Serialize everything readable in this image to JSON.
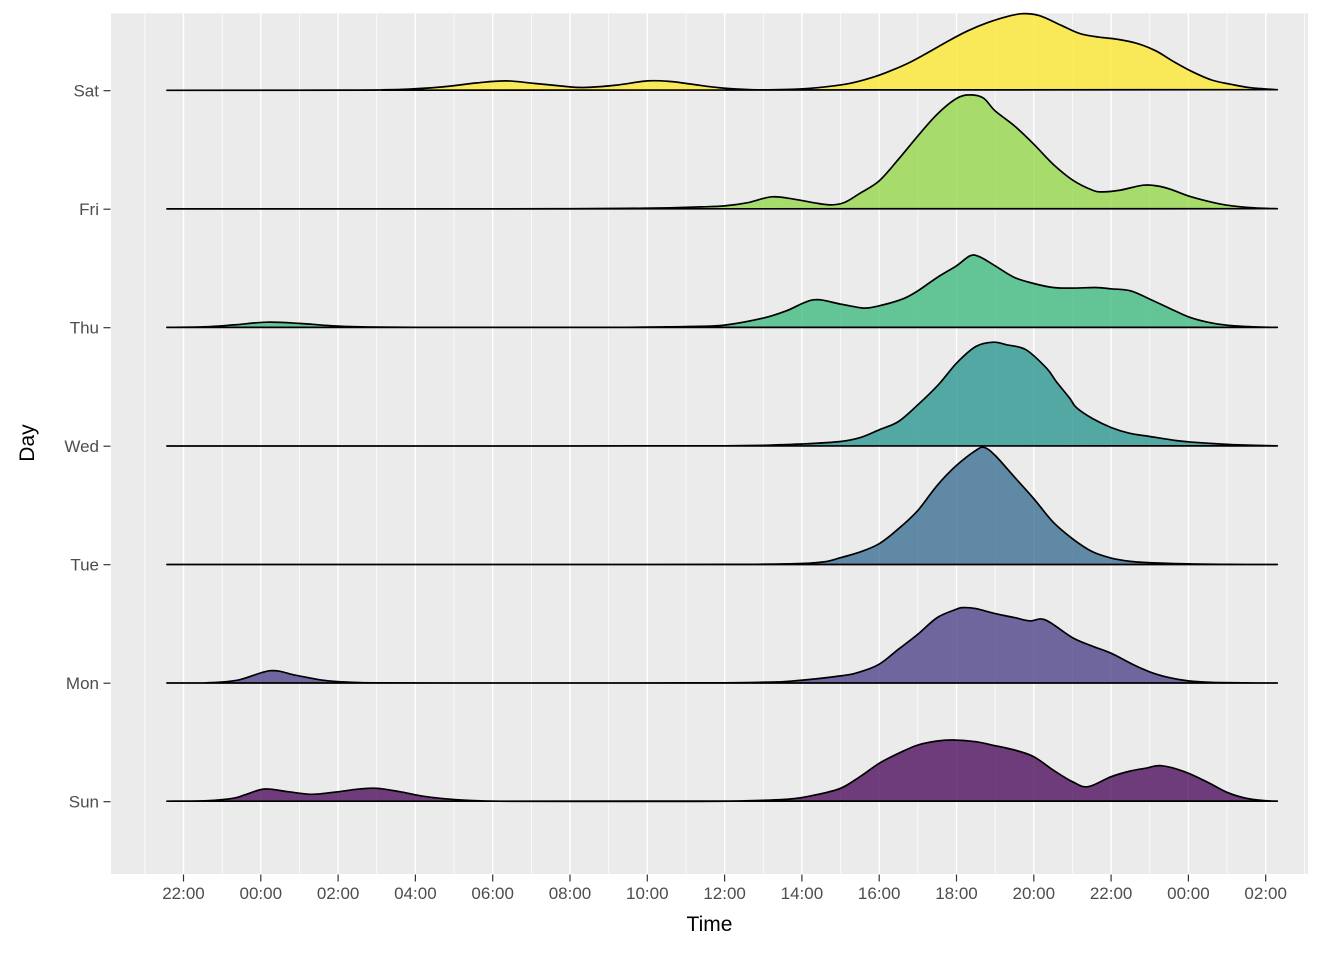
{
  "figure": {
    "bg": "#ffffff"
  },
  "axes": {
    "x_title": "Time",
    "y_title": "Day",
    "tick_label_color": "#4d4d4d",
    "tick_mark_color": "#333333",
    "title_color": "#000000"
  },
  "panel": {
    "bg": "#EBEBEB",
    "grid_color": "#FFFFFF"
  },
  "chart_data": {
    "type": "area",
    "variant": "ridgeline-density",
    "xlabel": "Time",
    "ylabel": "Day",
    "x_unit": "hours after first tick (22:00); 2 = 00:00, 14 = 12:00, 26 = 00:00 next day",
    "height_unit": "px of panel; row spacing = 118.5 px",
    "x_major_ticks_u": [
      0,
      2,
      4,
      6,
      8,
      10,
      12,
      14,
      16,
      18,
      20,
      22,
      24,
      26,
      28
    ],
    "x_major_tick_labels": [
      "22:00",
      "00:00",
      "02:00",
      "04:00",
      "06:00",
      "08:00",
      "10:00",
      "12:00",
      "14:00",
      "16:00",
      "18:00",
      "20:00",
      "22:00",
      "00:00",
      "02:00"
    ],
    "x_minor_ticks_u": [
      -1,
      1,
      3,
      5,
      7,
      9,
      11,
      13,
      15,
      17,
      19,
      21,
      23,
      25,
      27,
      29
    ],
    "y_categories_top_to_bottom": [
      "Sat",
      "Fri",
      "Thu",
      "Wed",
      "Tue",
      "Mon",
      "Sun"
    ],
    "fill_opacity": 0.75,
    "series": [
      {
        "name": "Sat",
        "fill": "#FDE725",
        "points": [
          [
            -0.43,
            0.4
          ],
          [
            2,
            0.4
          ],
          [
            4,
            0.6
          ],
          [
            5.6,
            1.2
          ],
          [
            6.7,
            3.8
          ],
          [
            7.6,
            7.8
          ],
          [
            8.35,
            9.8
          ],
          [
            9.1,
            7.2
          ],
          [
            9.9,
            4.2
          ],
          [
            10.35,
            3.2
          ],
          [
            11.2,
            5.6
          ],
          [
            12.0,
            9.8
          ],
          [
            12.6,
            9.2
          ],
          [
            13.2,
            6.2
          ],
          [
            13.9,
            2.8
          ],
          [
            14.7,
            1
          ],
          [
            15.6,
            1.2
          ],
          [
            16.4,
            3
          ],
          [
            17.2,
            7
          ],
          [
            17.8,
            13
          ],
          [
            18.3,
            20
          ],
          [
            18.8,
            28.5
          ],
          [
            19.3,
            39
          ],
          [
            19.8,
            50
          ],
          [
            20.3,
            60
          ],
          [
            20.8,
            68
          ],
          [
            21.3,
            74
          ],
          [
            21.7,
            77
          ],
          [
            22.15,
            75
          ],
          [
            22.7,
            65.5
          ],
          [
            23.2,
            57
          ],
          [
            23.7,
            53.5
          ],
          [
            24.15,
            51.5
          ],
          [
            24.65,
            47.5
          ],
          [
            25.15,
            40
          ],
          [
            25.6,
            29.5
          ],
          [
            26.1,
            19
          ],
          [
            26.6,
            10.7
          ],
          [
            27.1,
            6.4
          ],
          [
            27.6,
            3
          ],
          [
            28.3,
            1
          ]
        ]
      },
      {
        "name": "Fri",
        "fill": "#90D743",
        "points": [
          [
            -0.43,
            0.3
          ],
          [
            4,
            0.3
          ],
          [
            8,
            0.35
          ],
          [
            10,
            0.5
          ],
          [
            11.5,
            0.8
          ],
          [
            12.6,
            1.4
          ],
          [
            13.4,
            2.3
          ],
          [
            14,
            3.3
          ],
          [
            14.6,
            6.5
          ],
          [
            15.22,
            12.4
          ],
          [
            15.8,
            10
          ],
          [
            16.3,
            6.5
          ],
          [
            16.73,
            4.3
          ],
          [
            17.1,
            6.7
          ],
          [
            17.5,
            15.9
          ],
          [
            18,
            28.3
          ],
          [
            18.5,
            50
          ],
          [
            19,
            73.3
          ],
          [
            19.5,
            95
          ],
          [
            20,
            110.7
          ],
          [
            20.35,
            114.3
          ],
          [
            20.7,
            111
          ],
          [
            21,
            98.3
          ],
          [
            21.5,
            83.3
          ],
          [
            22,
            65
          ],
          [
            22.5,
            45
          ],
          [
            23,
            29.3
          ],
          [
            23.5,
            19.3
          ],
          [
            23.76,
            17.3
          ],
          [
            24.2,
            18.8
          ],
          [
            24.83,
            24
          ],
          [
            25.2,
            23.2
          ],
          [
            25.53,
            20
          ],
          [
            26,
            13.3
          ],
          [
            26.5,
            8
          ],
          [
            27,
            4
          ],
          [
            27.7,
            1.3
          ],
          [
            28.3,
            0.5
          ]
        ]
      },
      {
        "name": "Thu",
        "fill": "#35B779",
        "points": [
          [
            -0.43,
            0.3
          ],
          [
            0.5,
            0.8
          ],
          [
            1.3,
            2.8
          ],
          [
            2.15,
            5.5
          ],
          [
            3,
            4.3
          ],
          [
            3.8,
            2
          ],
          [
            4.6,
            0.8
          ],
          [
            6,
            0.3
          ],
          [
            9,
            0.3
          ],
          [
            11.5,
            0.4
          ],
          [
            12.5,
            0.8
          ],
          [
            13.1,
            1.2
          ],
          [
            14,
            2.6
          ],
          [
            15,
            9.6
          ],
          [
            15.6,
            16.9
          ],
          [
            16.3,
            27.9
          ],
          [
            17,
            23.6
          ],
          [
            17.6,
            19.6
          ],
          [
            18,
            21.9
          ],
          [
            18.6,
            28.6
          ],
          [
            19,
            36.9
          ],
          [
            19.5,
            50.2
          ],
          [
            20,
            61.9
          ],
          [
            20.35,
            71.9
          ],
          [
            20.6,
            70.9
          ],
          [
            21,
            61.9
          ],
          [
            21.5,
            50.2
          ],
          [
            22,
            44.2
          ],
          [
            22.5,
            40.2
          ],
          [
            23,
            39.6
          ],
          [
            23.6,
            40.2
          ],
          [
            24,
            38.9
          ],
          [
            24.5,
            36.9
          ],
          [
            25,
            28.6
          ],
          [
            25.5,
            19.6
          ],
          [
            26,
            10.9
          ],
          [
            26.5,
            5.5
          ],
          [
            27,
            2.5
          ],
          [
            27.7,
            0.8
          ],
          [
            28.3,
            0.3
          ]
        ]
      },
      {
        "name": "Wed",
        "fill": "#21918C",
        "points": [
          [
            -0.43,
            0.2
          ],
          [
            4,
            0.2
          ],
          [
            8,
            0.2
          ],
          [
            12,
            0.3
          ],
          [
            14,
            0.4
          ],
          [
            15,
            0.8
          ],
          [
            15.43,
            1.5
          ],
          [
            16,
            2.2
          ],
          [
            17,
            4.7
          ],
          [
            17.5,
            8.5
          ],
          [
            18,
            16.4
          ],
          [
            18.5,
            24.7
          ],
          [
            19,
            41.4
          ],
          [
            19.53,
            61.4
          ],
          [
            20,
            83
          ],
          [
            20.5,
            99.7
          ],
          [
            20.95,
            104
          ],
          [
            21.3,
            101.4
          ],
          [
            21.8,
            96.4
          ],
          [
            22.33,
            78
          ],
          [
            22.58,
            64.7
          ],
          [
            22.93,
            48
          ],
          [
            23.1,
            38.7
          ],
          [
            23.53,
            27.4
          ],
          [
            24,
            18.7
          ],
          [
            24.47,
            13
          ],
          [
            25,
            9.7
          ],
          [
            25.67,
            5.7
          ],
          [
            26,
            4.4
          ],
          [
            26.5,
            3
          ],
          [
            27.3,
            1.3
          ],
          [
            28.3,
            0.3
          ]
        ]
      },
      {
        "name": "Tue",
        "fill": "#31688E",
        "points": [
          [
            -0.43,
            0.2
          ],
          [
            4,
            0.2
          ],
          [
            8,
            0.2
          ],
          [
            12,
            0.2
          ],
          [
            14,
            0.3
          ],
          [
            15,
            0.5
          ],
          [
            16,
            1.2
          ],
          [
            16.6,
            3
          ],
          [
            17,
            7
          ],
          [
            17.5,
            12.6
          ],
          [
            18,
            21
          ],
          [
            18.5,
            36
          ],
          [
            19,
            54.3
          ],
          [
            19.5,
            79.3
          ],
          [
            20,
            99.3
          ],
          [
            20.5,
            114.3
          ],
          [
            20.72,
            117.3
          ],
          [
            21,
            109.3
          ],
          [
            21.5,
            87.6
          ],
          [
            22,
            66
          ],
          [
            22.5,
            42.6
          ],
          [
            23,
            26
          ],
          [
            23.5,
            13.3
          ],
          [
            24,
            6.6
          ],
          [
            24.5,
            3.3
          ],
          [
            25,
            2
          ],
          [
            26,
            0.8
          ],
          [
            27,
            0.3
          ],
          [
            28.3,
            0.2
          ]
        ]
      },
      {
        "name": "Mon",
        "fill": "#443983",
        "points": [
          [
            -0.43,
            0.2
          ],
          [
            0.6,
            0.4
          ],
          [
            1.4,
            3
          ],
          [
            2.25,
            12.5
          ],
          [
            2.9,
            8
          ],
          [
            3.6,
            3
          ],
          [
            4.3,
            1
          ],
          [
            5,
            0.4
          ],
          [
            7,
            0.25
          ],
          [
            10,
            0.25
          ],
          [
            13,
            0.3
          ],
          [
            14,
            0.4
          ],
          [
            15,
            1
          ],
          [
            15.7,
            2
          ],
          [
            17,
            7.3
          ],
          [
            17.5,
            11.3
          ],
          [
            18,
            19
          ],
          [
            18.5,
            34
          ],
          [
            19,
            49
          ],
          [
            19.5,
            65.6
          ],
          [
            20,
            74
          ],
          [
            20.17,
            75.6
          ],
          [
            20.5,
            74.6
          ],
          [
            21,
            69.6
          ],
          [
            21.5,
            65.6
          ],
          [
            21.9,
            62.3
          ],
          [
            22.3,
            63.3
          ],
          [
            23,
            45.6
          ],
          [
            23.5,
            37.3
          ],
          [
            24,
            30
          ],
          [
            24.5,
            20
          ],
          [
            25,
            11.3
          ],
          [
            25.5,
            5.6
          ],
          [
            26,
            2.3
          ],
          [
            26.6,
            0.8
          ],
          [
            27.5,
            0.3
          ],
          [
            28.3,
            0.25
          ]
        ]
      },
      {
        "name": "Sun",
        "fill": "#440154",
        "points": [
          [
            -0.43,
            0.5
          ],
          [
            0.6,
            1
          ],
          [
            1.3,
            3.5
          ],
          [
            1.6,
            7
          ],
          [
            2.1,
            12.7
          ],
          [
            2.7,
            10
          ],
          [
            3.3,
            7.4
          ],
          [
            3.9,
            9.5
          ],
          [
            4.5,
            12.5
          ],
          [
            5,
            13.4
          ],
          [
            5.6,
            10
          ],
          [
            6.2,
            5.5
          ],
          [
            6.9,
            2.5
          ],
          [
            7.6,
            1
          ],
          [
            8.5,
            0.4
          ],
          [
            10.5,
            0.3
          ],
          [
            13,
            0.3
          ],
          [
            14.5,
            0.8
          ],
          [
            15.7,
            2.7
          ],
          [
            16.34,
            6.7
          ],
          [
            17,
            13.4
          ],
          [
            17.5,
            25
          ],
          [
            18,
            38.4
          ],
          [
            18.5,
            48.4
          ],
          [
            19,
            56.7
          ],
          [
            19.5,
            60.7
          ],
          [
            19.9,
            61.7
          ],
          [
            20.5,
            60
          ],
          [
            21,
            56
          ],
          [
            21.5,
            51.7
          ],
          [
            22,
            45
          ],
          [
            22.5,
            31.7
          ],
          [
            23,
            20
          ],
          [
            23.4,
            15
          ],
          [
            24,
            25
          ],
          [
            24.5,
            30.7
          ],
          [
            24.9,
            33.5
          ],
          [
            25.3,
            36
          ],
          [
            25.9,
            30
          ],
          [
            26.5,
            19.4
          ],
          [
            27,
            9.4
          ],
          [
            27.5,
            3.4
          ],
          [
            28,
            1
          ],
          [
            28.3,
            0.6
          ]
        ]
      }
    ]
  }
}
